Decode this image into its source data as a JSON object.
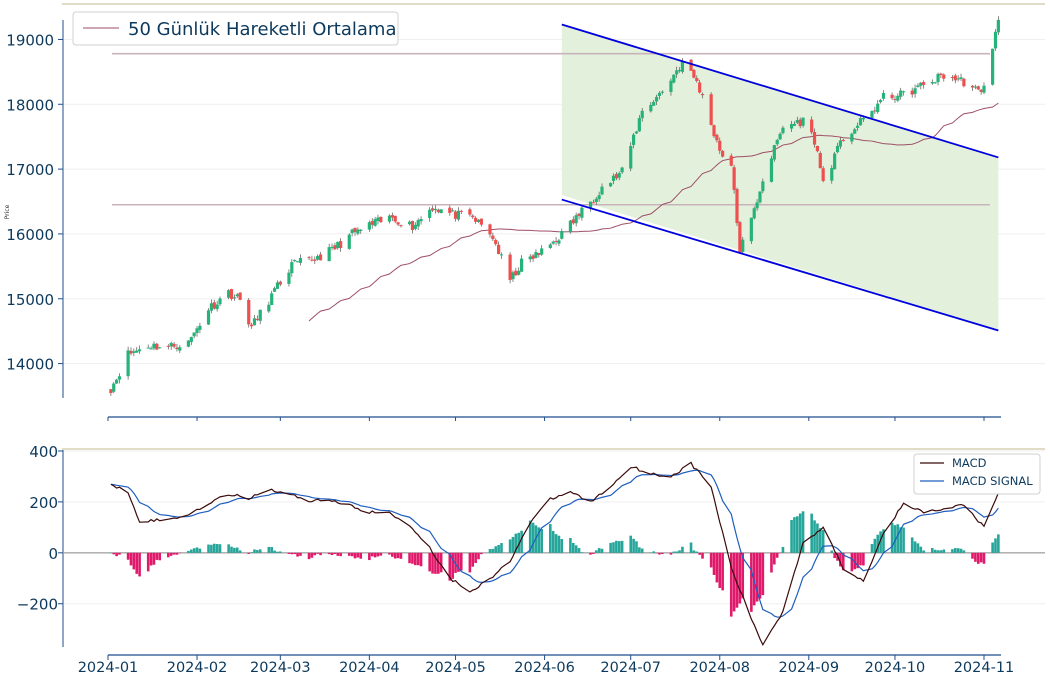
{
  "chart_data": [
    {
      "type": "candlestick",
      "ylabel": "Price",
      "ylim": [
        13500,
        19300
      ],
      "y_ticks": [
        14000,
        15000,
        16000,
        17000,
        18000,
        19000
      ],
      "legend": {
        "placement": "top-left",
        "entries": [
          "50 Günlük Hareketli Ortalama"
        ]
      },
      "horizontal_levels": [
        18780,
        16450
      ],
      "channel": {
        "upper": {
          "start": [
            "2024-06-07",
            19230
          ],
          "end": [
            "2024-11-06",
            17180
          ]
        },
        "lower": {
          "start": [
            "2024-06-07",
            16530
          ],
          "end": [
            "2024-11-06",
            14510
          ]
        },
        "fill_color": "#e0f0d8",
        "line_color": "#0000dd"
      },
      "up_color": "#26b37a",
      "down_color": "#ee4f4f",
      "ma_color": "#9e4e66",
      "close_anchors": [
        [
          "2024-01-02",
          13620
        ],
        [
          "2024-01-04",
          13780
        ],
        [
          "2024-01-08",
          14150
        ],
        [
          "2024-01-15",
          14280
        ],
        [
          "2024-01-22",
          14260
        ],
        [
          "2024-01-29",
          14320
        ],
        [
          "2024-02-05",
          14850
        ],
        [
          "2024-02-12",
          15100
        ],
        [
          "2024-02-16",
          14980
        ],
        [
          "2024-02-20",
          14560
        ],
        [
          "2024-02-27",
          15050
        ],
        [
          "2024-03-05",
          15520
        ],
        [
          "2024-03-12",
          15600
        ],
        [
          "2024-03-19",
          15750
        ],
        [
          "2024-03-26",
          16000
        ],
        [
          "2024-04-02",
          16150
        ],
        [
          "2024-04-09",
          16250
        ],
        [
          "2024-04-16",
          16120
        ],
        [
          "2024-04-23",
          16420
        ],
        [
          "2024-04-30",
          16300
        ],
        [
          "2024-05-07",
          16250
        ],
        [
          "2024-05-14",
          15950
        ],
        [
          "2024-05-20",
          15280
        ],
        [
          "2024-05-24",
          15550
        ],
        [
          "2024-05-31",
          15720
        ],
        [
          "2024-06-07",
          16000
        ],
        [
          "2024-06-14",
          16350
        ],
        [
          "2024-06-21",
          16720
        ],
        [
          "2024-06-28",
          16950
        ],
        [
          "2024-07-05",
          17900
        ],
        [
          "2024-07-12",
          18200
        ],
        [
          "2024-07-19",
          18650
        ],
        [
          "2024-07-24",
          18350
        ],
        [
          "2024-07-26",
          18100
        ],
        [
          "2024-08-01",
          17300
        ],
        [
          "2024-08-05",
          17050
        ],
        [
          "2024-08-08",
          15750
        ],
        [
          "2024-08-12",
          16200
        ],
        [
          "2024-08-16",
          16850
        ],
        [
          "2024-08-23",
          17650
        ],
        [
          "2024-08-30",
          17750
        ],
        [
          "2024-09-03",
          17450
        ],
        [
          "2024-09-06",
          16800
        ],
        [
          "2024-09-13",
          17480
        ],
        [
          "2024-09-20",
          17750
        ],
        [
          "2024-09-27",
          18100
        ],
        [
          "2024-10-04",
          18150
        ],
        [
          "2024-10-11",
          18300
        ],
        [
          "2024-10-18",
          18450
        ],
        [
          "2024-10-25",
          18350
        ],
        [
          "2024-10-31",
          18150
        ],
        [
          "2024-11-04",
          18900
        ],
        [
          "2024-11-06",
          19260
        ]
      ]
    },
    {
      "type": "line+bar",
      "ylim": [
        -370,
        400
      ],
      "y_ticks": [
        -200,
        0,
        200,
        400
      ],
      "x_ticks": [
        "2024-01",
        "2024-02",
        "2024-03",
        "2024-04",
        "2024-05",
        "2024-06",
        "2024-07",
        "2024-08",
        "2024-09",
        "2024-10",
        "2024-11"
      ],
      "legend": {
        "placement": "top-right",
        "entries": [
          "MACD",
          "MACD SIGNAL"
        ]
      },
      "series": [
        {
          "name": "MACD",
          "color": "#3b0a0a"
        },
        {
          "name": "MACD SIGNAL",
          "color": "#1f5fbf"
        }
      ],
      "macd_anchors": [
        [
          "2024-01-02",
          270
        ],
        [
          "2024-01-08",
          240
        ],
        [
          "2024-01-12",
          125
        ],
        [
          "2024-01-22",
          130
        ],
        [
          "2024-01-29",
          150
        ],
        [
          "2024-02-05",
          195
        ],
        [
          "2024-02-12",
          230
        ],
        [
          "2024-02-19",
          215
        ],
        [
          "2024-02-26",
          250
        ],
        [
          "2024-03-04",
          230
        ],
        [
          "2024-03-11",
          205
        ],
        [
          "2024-03-18",
          210
        ],
        [
          "2024-03-25",
          185
        ],
        [
          "2024-04-01",
          160
        ],
        [
          "2024-04-08",
          155
        ],
        [
          "2024-04-15",
          110
        ],
        [
          "2024-04-22",
          20
        ],
        [
          "2024-04-29",
          -100
        ],
        [
          "2024-05-06",
          -150
        ],
        [
          "2024-05-13",
          -105
        ],
        [
          "2024-05-20",
          -30
        ],
        [
          "2024-05-27",
          120
        ],
        [
          "2024-06-03",
          210
        ],
        [
          "2024-06-10",
          240
        ],
        [
          "2024-06-17",
          200
        ],
        [
          "2024-06-24",
          260
        ],
        [
          "2024-07-01",
          340
        ],
        [
          "2024-07-08",
          310
        ],
        [
          "2024-07-15",
          300
        ],
        [
          "2024-07-22",
          350
        ],
        [
          "2024-07-29",
          260
        ],
        [
          "2024-08-05",
          -60
        ],
        [
          "2024-08-12",
          -260
        ],
        [
          "2024-08-16",
          -360
        ],
        [
          "2024-08-23",
          -230
        ],
        [
          "2024-08-30",
          40
        ],
        [
          "2024-09-06",
          100
        ],
        [
          "2024-09-13",
          -60
        ],
        [
          "2024-09-20",
          -110
        ],
        [
          "2024-09-27",
          80
        ],
        [
          "2024-10-04",
          190
        ],
        [
          "2024-10-11",
          160
        ],
        [
          "2024-10-18",
          170
        ],
        [
          "2024-10-25",
          190
        ],
        [
          "2024-11-01",
          100
        ],
        [
          "2024-11-06",
          230
        ]
      ]
    }
  ]
}
